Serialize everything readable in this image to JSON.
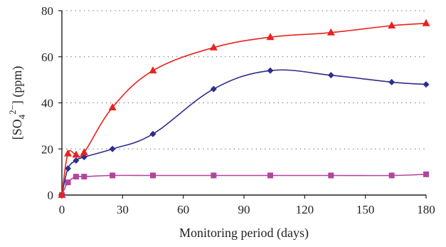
{
  "chart_data": {
    "type": "line",
    "xlabel": "Monitoring period (days)",
    "ylabel": {
      "parts": [
        "[SO",
        "4",
        "2−",
        "] (ppm)"
      ]
    },
    "xlim": [
      0,
      180
    ],
    "ylim": [
      0,
      80
    ],
    "xticks": [
      "0",
      "30",
      "60",
      "90",
      "120",
      "150",
      "180"
    ],
    "yticks": [
      "0",
      "20",
      "40",
      "60",
      "80"
    ],
    "grid": "horizontal dotted",
    "legend": "none",
    "series": [
      {
        "marker": "triangle",
        "color": "#e8231e",
        "x": [
          0,
          3,
          7,
          11,
          25,
          45,
          75,
          103,
          133,
          163,
          180
        ],
        "y": [
          0,
          18,
          17.5,
          18.5,
          38,
          54,
          64,
          68.5,
          70.5,
          73.5,
          74.5
        ]
      },
      {
        "marker": "diamond",
        "color": "#2e2d8c",
        "x": [
          0,
          3,
          7,
          11,
          25,
          45,
          75,
          103,
          133,
          163,
          180
        ],
        "y": [
          0,
          11.5,
          15,
          16.5,
          20,
          26.5,
          46,
          54,
          52,
          49,
          48
        ]
      },
      {
        "marker": "square",
        "color": "#b3449c",
        "x": [
          0,
          3,
          7,
          11,
          25,
          45,
          75,
          103,
          133,
          163,
          180
        ],
        "y": [
          0,
          5.5,
          8,
          8,
          8.5,
          8.5,
          8.5,
          8.5,
          8.5,
          8.5,
          9
        ]
      }
    ]
  }
}
